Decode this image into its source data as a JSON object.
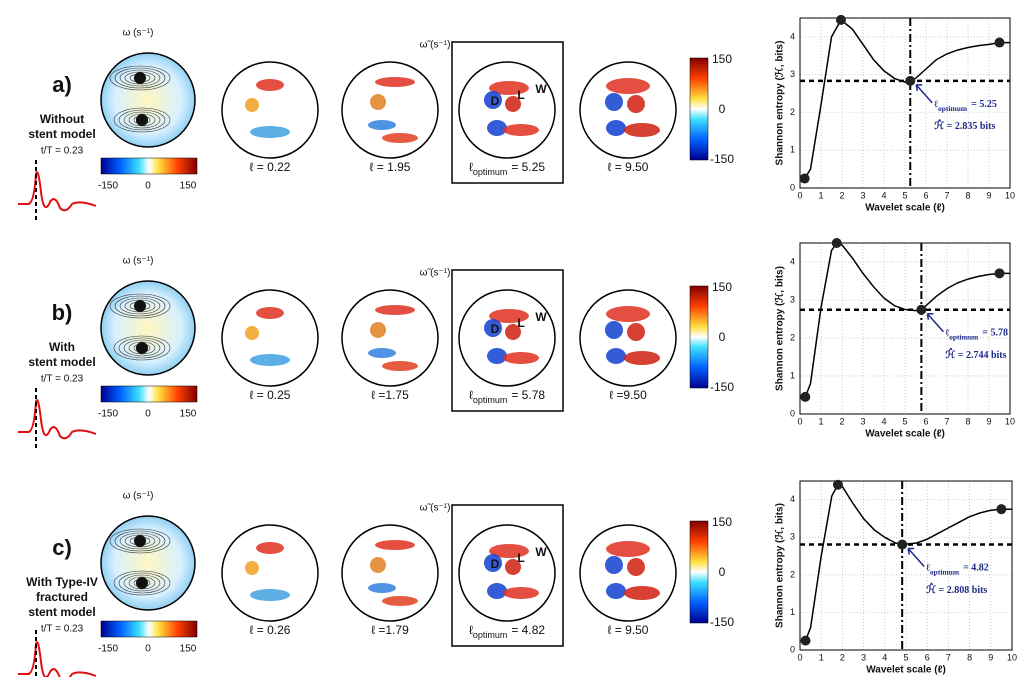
{
  "rows": [
    {
      "label": "a)",
      "model": [
        "Without",
        "stent model"
      ],
      "time": "t/T = 0.23",
      "omega_title": "ω (s⁻¹)",
      "omega_ticks": [
        "-150",
        "0",
        "150"
      ],
      "filtered_title": "ω̃ (s⁻¹)",
      "scales": [
        "ℓ = 0.22",
        "ℓ = 1.95",
        null,
        "ℓ = 9.50"
      ],
      "optimum_label": {
        "symbol": "ℓ",
        "sub": "optimum",
        "rest": "= 5.25"
      },
      "colorbar_ticks": [
        "150",
        "0",
        "-150"
      ],
      "regions": [
        "D",
        "L",
        "W"
      ]
    },
    {
      "label": "b)",
      "model": [
        "With",
        "stent model"
      ],
      "time": "t/T = 0.23",
      "omega_title": "ω (s⁻¹)",
      "omega_ticks": [
        "-150",
        "0",
        "150"
      ],
      "filtered_title": "ω̃ (s⁻¹)",
      "scales": [
        "ℓ = 0.25",
        "ℓ =1.75",
        null,
        "ℓ  =9.50"
      ],
      "optimum_label": {
        "symbol": "ℓ",
        "sub": "optimum",
        "rest": "= 5.78"
      },
      "colorbar_ticks": [
        "150",
        "0",
        "-150"
      ],
      "regions": [
        "D",
        "L",
        "W"
      ]
    },
    {
      "label": "c)",
      "model": [
        "With Type-IV",
        "fractured",
        "stent model"
      ],
      "time": "t/T = 0.23",
      "omega_title": "ω (s⁻¹)",
      "omega_ticks": [
        "-150",
        "0",
        "150"
      ],
      "filtered_title": "ω̃ (s⁻¹)",
      "scales": [
        "ℓ = 0.26",
        "ℓ =1.79",
        null,
        "ℓ  = 9.50"
      ],
      "optimum_label": {
        "symbol": "ℓ",
        "sub": "optimum",
        "rest": "= 4.82"
      },
      "colorbar_ticks": [
        "150",
        "0",
        "-150"
      ],
      "regions": [
        "D",
        "L",
        "W"
      ]
    }
  ],
  "chart_data": [
    {
      "type": "line",
      "xlabel": "Wavelet scale (ℓ)",
      "ylabel": "Shannon entropy (ℋ, bits)",
      "x": [
        0.22,
        0.5,
        1,
        1.5,
        1.95,
        2.5,
        3,
        3.5,
        4,
        4.5,
        5,
        5.25,
        5.5,
        6,
        6.5,
        7,
        7.5,
        8,
        8.5,
        9,
        9.5,
        10
      ],
      "values": [
        0.25,
        0.5,
        2.2,
        4.0,
        4.45,
        4.2,
        3.8,
        3.4,
        3.1,
        2.9,
        2.8,
        2.835,
        2.9,
        3.15,
        3.4,
        3.55,
        3.65,
        3.72,
        3.77,
        3.8,
        3.85,
        3.85
      ],
      "points": {
        "x": [
          0.22,
          1.95,
          5.25,
          9.5
        ],
        "values": [
          0.25,
          4.45,
          2.835,
          3.85
        ]
      },
      "optimum_x": 5.25,
      "optimum_y": 2.835,
      "optimum_label": {
        "symbol": "ℓ",
        "sub": "optimum",
        "rest": "= 5.25"
      },
      "entropy_label": "ℋ̂ = 2.835 bits",
      "color": "#000000",
      "grid": true,
      "xlim": [
        0,
        10
      ],
      "ylim": [
        0,
        4.5
      ],
      "xticks": [
        0,
        1,
        2,
        3,
        4,
        5,
        6,
        7,
        8,
        9,
        10
      ],
      "yticks": [
        0,
        1,
        2,
        3,
        4
      ]
    },
    {
      "type": "line",
      "xlabel": "Wavelet scale (ℓ)",
      "ylabel": "Shannon entropy (ℋ, bits)",
      "x": [
        0.25,
        0.5,
        1,
        1.5,
        1.75,
        2,
        2.5,
        3,
        3.5,
        4,
        4.5,
        5,
        5.5,
        5.78,
        6,
        6.5,
        7,
        7.5,
        8,
        8.5,
        9,
        9.5,
        10
      ],
      "values": [
        0.45,
        0.8,
        2.8,
        4.3,
        4.5,
        4.45,
        4.1,
        3.7,
        3.35,
        3.05,
        2.85,
        2.75,
        2.72,
        2.744,
        2.85,
        3.1,
        3.3,
        3.45,
        3.55,
        3.62,
        3.67,
        3.7,
        3.7
      ],
      "points": {
        "x": [
          0.25,
          1.75,
          5.78,
          9.5
        ],
        "values": [
          0.45,
          4.5,
          2.744,
          3.7
        ]
      },
      "optimum_x": 5.78,
      "optimum_y": 2.744,
      "optimum_label": {
        "symbol": "ℓ",
        "sub": "optimum",
        "rest": "= 5.78"
      },
      "entropy_label": "ℋ̂ = 2.744 bits",
      "color": "#000000",
      "grid": true,
      "xlim": [
        0,
        10
      ],
      "ylim": [
        0,
        4.5
      ],
      "xticks": [
        0,
        1,
        2,
        3,
        4,
        5,
        6,
        7,
        8,
        9,
        10
      ],
      "yticks": [
        0,
        1,
        2,
        3,
        4
      ]
    },
    {
      "type": "line",
      "xlabel": "Wavelet scale (ℓ)",
      "ylabel": "Shannon entropy (ℋ, bits)",
      "x": [
        0.26,
        0.5,
        1,
        1.5,
        1.79,
        2,
        2.5,
        3,
        3.5,
        4,
        4.5,
        4.82,
        5.5,
        6,
        6.5,
        7,
        7.5,
        8,
        8.5,
        9,
        9.5,
        10
      ],
      "values": [
        0.25,
        0.6,
        2.5,
        4.1,
        4.4,
        4.35,
        3.9,
        3.5,
        3.2,
        3.0,
        2.85,
        2.808,
        2.85,
        2.95,
        3.1,
        3.25,
        3.4,
        3.55,
        3.65,
        3.72,
        3.75,
        3.75
      ],
      "points": {
        "x": [
          0.26,
          1.79,
          4.82,
          9.5
        ],
        "values": [
          0.25,
          4.4,
          2.808,
          3.75
        ]
      },
      "optimum_x": 4.82,
      "optimum_y": 2.808,
      "optimum_label": {
        "symbol": "ℓ",
        "sub": "optimum",
        "rest": "= 4.82"
      },
      "entropy_label": "ℋ̂ = 2.808 bits",
      "color": "#000000",
      "grid": true,
      "xlim": [
        0,
        10
      ],
      "ylim": [
        0,
        4.5
      ],
      "xticks": [
        0,
        1,
        2,
        3,
        4,
        5,
        6,
        7,
        8,
        9,
        10
      ],
      "yticks": [
        0,
        1,
        2,
        3,
        4
      ]
    }
  ]
}
